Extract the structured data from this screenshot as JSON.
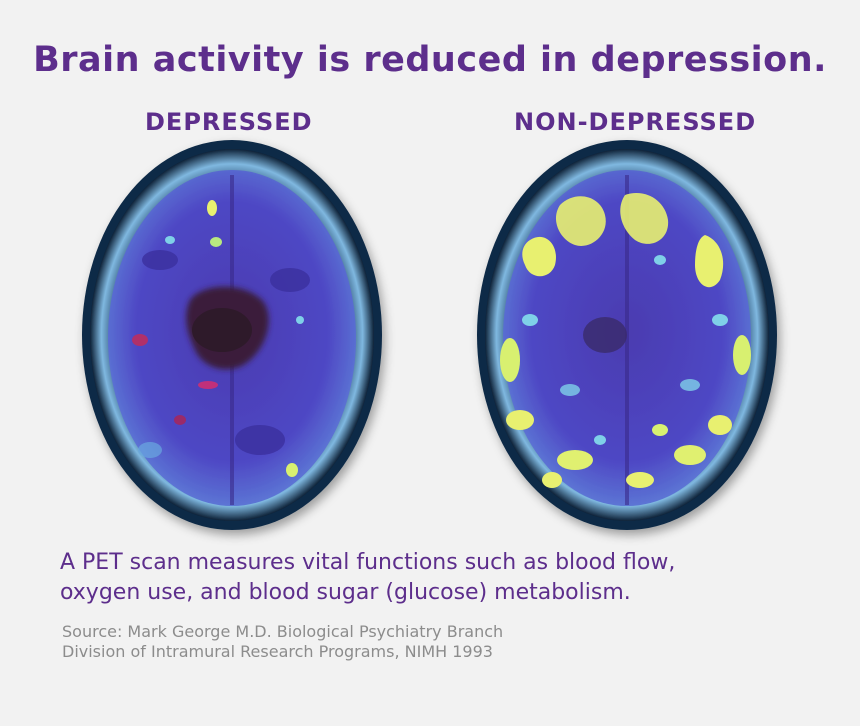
{
  "title": "Brain activity is reduced in depression.",
  "scans": {
    "left_label": "DEPRESSED",
    "right_label": "NON-DEPRESSED"
  },
  "caption": {
    "line1": "A PET scan measures vital functions such as blood flow,",
    "line2": "oxygen use, and blood sugar (glucose) metabolism."
  },
  "source": {
    "line1": "Source: Mark George M.D. Biological Psychiatry Branch",
    "line2": "Division of Intramural Research Programs, NIMH 1993"
  },
  "colors": {
    "heading": "#5d2e8c",
    "source_text": "#8c8c8c",
    "scan_base": "#4a3fbf",
    "scan_low": "#3a1f4a",
    "scan_high": "#e8f070"
  }
}
